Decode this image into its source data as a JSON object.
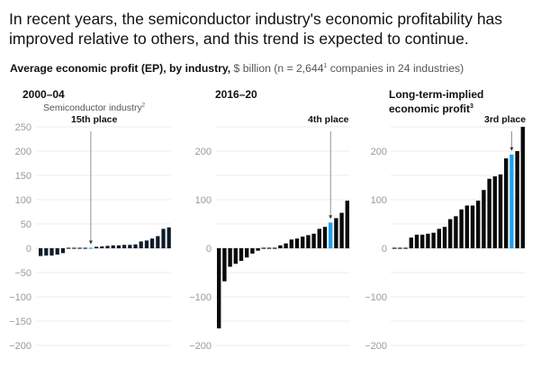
{
  "headline": "In recent years, the semiconductor industry's economic profitability has improved relative to others, and this trend is expected to continue.",
  "subhead": {
    "bold": "Average economic profit (EP), by industry,",
    "unit": "$ billion",
    "note_pre": "(n = 2,644",
    "note_sup": "1",
    "note_post": " companies in 24 industries)"
  },
  "colors": {
    "bar": "#0a0a0a",
    "bar_panel1": "#0d1b2a",
    "highlight": "#1fa2ee",
    "grid": "#ececec",
    "tick": "#9a9a9a"
  },
  "chart_data": [
    {
      "type": "bar",
      "title": "2000–04",
      "annotation": "Semiconductor industry",
      "annotation_sup": "2",
      "highlight_label": "15th place",
      "highlight_index": 9,
      "xlabel": "",
      "ylabel": "Average economic profit, $ billion",
      "ylim": [
        -200,
        250
      ],
      "yticks": [
        250,
        200,
        150,
        100,
        50,
        0,
        -50,
        -100,
        -150,
        -200
      ],
      "ytick_labels": [
        "250",
        "200",
        "150",
        "100",
        "50",
        "0",
        "−50",
        "−100",
        "−150",
        "−200"
      ],
      "grid": true,
      "values": [
        -16,
        -15,
        -15,
        -13,
        -10,
        -2,
        0,
        0,
        0,
        1,
        3,
        4,
        5,
        6,
        6,
        7,
        7,
        8,
        14,
        16,
        20,
        25,
        40,
        43
      ]
    },
    {
      "type": "bar",
      "title": "2016–20",
      "highlight_label": "4th place",
      "highlight_index": 20,
      "xlabel": "",
      "ylabel": "Average economic profit, $ billion",
      "ylim": [
        -200,
        250
      ],
      "yticks": [
        200,
        100,
        0,
        -100,
        -200
      ],
      "ytick_labels": [
        "200",
        "100",
        "0",
        "−100",
        "−200"
      ],
      "gridlines": [
        250,
        200,
        150,
        100,
        50,
        0,
        -50,
        -100,
        -150,
        -200
      ],
      "grid": true,
      "values": [
        -165,
        -68,
        -38,
        -32,
        -26,
        -19,
        -11,
        -5,
        -2,
        0,
        2,
        6,
        10,
        18,
        20,
        24,
        27,
        30,
        40,
        44,
        53,
        62,
        73,
        98
      ]
    },
    {
      "type": "bar",
      "title": "Long-term-implied economic profit",
      "title_sup": "3",
      "highlight_label": "3rd place",
      "highlight_index": 21,
      "xlabel": "",
      "ylabel": "Average economic profit, $ billion",
      "ylim": [
        -200,
        250
      ],
      "yticks": [
        200,
        100,
        0,
        -100,
        -200
      ],
      "ytick_labels": [
        "200",
        "100",
        "0",
        "−100",
        "−200"
      ],
      "gridlines": [
        250,
        200,
        150,
        100,
        50,
        0,
        -50,
        -100,
        -150,
        -200
      ],
      "grid": true,
      "values": [
        0,
        0,
        2,
        22,
        28,
        28,
        30,
        32,
        40,
        44,
        60,
        66,
        80,
        88,
        88,
        98,
        120,
        143,
        148,
        152,
        185,
        193,
        200,
        250
      ]
    }
  ]
}
